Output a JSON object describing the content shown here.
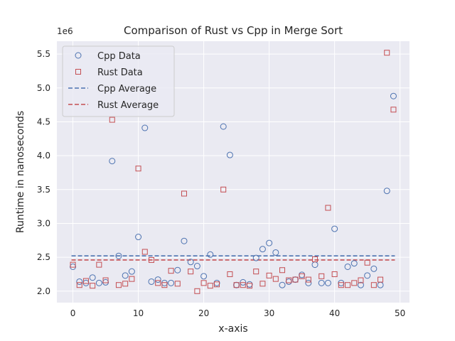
{
  "chart_data": {
    "type": "scatter",
    "title": "Comparison of Rust vs Cpp in Merge Sort",
    "xlabel": "x-axis",
    "ylabel": "Runtime in nanoseconds",
    "offset_label": "1e6",
    "xlim": [
      -2.45,
      51.45
    ],
    "ylim": [
      1.83,
      5.69
    ],
    "x_ticks": [
      0,
      10,
      20,
      30,
      40,
      50
    ],
    "x_tick_labels": [
      "0",
      "10",
      "20",
      "30",
      "40",
      "50"
    ],
    "y_ticks": [
      2.0,
      2.5,
      3.0,
      3.5,
      4.0,
      4.5,
      5.0,
      5.5
    ],
    "y_tick_labels": [
      "2.0",
      "2.5",
      "3.0",
      "3.5",
      "4.0",
      "4.5",
      "5.0",
      "5.5"
    ],
    "grid": true,
    "legend_position": "upper-left",
    "series": [
      {
        "name": "Cpp Data",
        "marker": "circle",
        "color": "#4c72b0",
        "x": [
          0,
          1,
          2,
          3,
          4,
          5,
          6,
          7,
          8,
          9,
          10,
          11,
          12,
          13,
          14,
          15,
          16,
          17,
          18,
          19,
          20,
          21,
          22,
          23,
          24,
          25,
          26,
          27,
          28,
          29,
          30,
          31,
          32,
          33,
          34,
          35,
          36,
          37,
          38,
          39,
          40,
          41,
          42,
          43,
          44,
          45,
          46,
          47,
          48,
          49
        ],
        "values": [
          2.36,
          2.14,
          2.12,
          2.2,
          2.12,
          2.13,
          3.92,
          2.52,
          2.23,
          2.29,
          2.8,
          4.41,
          2.14,
          2.17,
          2.12,
          2.12,
          2.31,
          2.74,
          2.43,
          2.37,
          2.22,
          2.54,
          2.12,
          4.43,
          4.01,
          2.09,
          2.13,
          2.1,
          2.49,
          2.62,
          2.71,
          2.57,
          2.09,
          2.14,
          2.17,
          2.24,
          2.12,
          2.39,
          2.12,
          2.12,
          2.92,
          2.12,
          2.36,
          2.41,
          2.09,
          2.23,
          2.33,
          2.09,
          3.48,
          4.88
        ]
      },
      {
        "name": "Rust Data",
        "marker": "square",
        "color": "#c44e52",
        "x": [
          0,
          1,
          2,
          3,
          4,
          5,
          6,
          7,
          8,
          9,
          10,
          11,
          12,
          13,
          14,
          15,
          16,
          17,
          18,
          19,
          20,
          21,
          22,
          23,
          24,
          25,
          26,
          27,
          28,
          29,
          30,
          31,
          32,
          33,
          34,
          35,
          36,
          37,
          38,
          39,
          40,
          41,
          42,
          43,
          44,
          45,
          46,
          47,
          48,
          49
        ],
        "values": [
          2.39,
          2.09,
          2.15,
          2.08,
          2.39,
          2.16,
          4.53,
          2.09,
          2.11,
          2.18,
          3.81,
          2.58,
          2.46,
          2.12,
          2.09,
          2.3,
          2.11,
          3.44,
          2.29,
          2.0,
          2.12,
          2.08,
          2.1,
          3.5,
          2.25,
          2.09,
          2.09,
          2.08,
          2.29,
          2.11,
          2.23,
          2.18,
          2.31,
          2.16,
          2.17,
          2.22,
          2.17,
          2.47,
          2.22,
          3.23,
          2.25,
          2.09,
          2.09,
          2.12,
          2.16,
          2.42,
          2.09,
          2.17,
          5.52,
          4.68
        ]
      }
    ],
    "reference_lines": [
      {
        "name": "Cpp Average",
        "value": 2.52,
        "color": "#4c72b0",
        "style": "dashed"
      },
      {
        "name": "Rust Average",
        "value": 2.46,
        "color": "#c44e52",
        "style": "dashed"
      }
    ],
    "colors": {
      "background": "#eaeaf2",
      "grid": "#ffffff",
      "text": "#262626"
    }
  }
}
